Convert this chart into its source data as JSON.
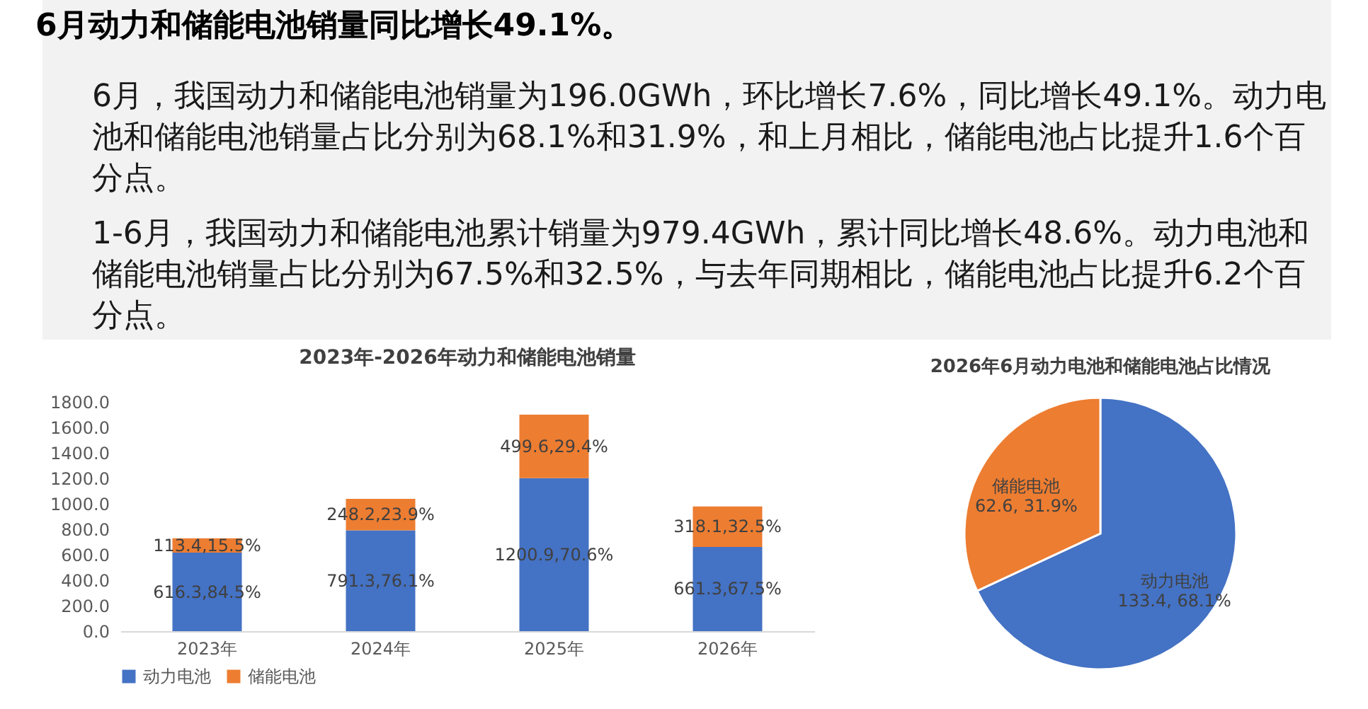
{
  "chart_data": [
    {
      "type": "other",
      "title": "6月动力和储能电池销量同比增长49.1%。",
      "annotations": [
        "6月，我国动力和储能电池销量为196.0GWh，环比增长7.6%，同比增长49.1%。动力电池和储能电池销量占比分别为68.1%和31.9%，和上月相比，储能电池占比提升1.6个百分点。",
        "1-6月，我国动力和储能电池累计销量为979.4GWh，累计同比增长48.6%。动力电池和储能电池销量占比分别为67.5%和32.5%，与去年同期相比，储能电池占比提升6.2个百分点。"
      ]
    },
    {
      "type": "bar",
      "title": "2023年-2026年动力和储能电池销量",
      "categories": [
        "2023年",
        "2024年",
        "2025年",
        "2026年"
      ],
      "stacked": true,
      "series": [
        {
          "name": "动力电池",
          "color": "#4472c4",
          "values": [
            616.3,
            791.3,
            1200.9,
            661.3
          ],
          "value_labels": [
            "616.3,84.5%",
            "791.3,76.1%",
            "1200.9,70.6%",
            "661.3,67.5%"
          ]
        },
        {
          "name": "储能电池",
          "color": "#ed7d31",
          "values": [
            113.4,
            248.2,
            499.6,
            318.1
          ],
          "value_labels": [
            "113.4,15.5%",
            "248.2,23.9%",
            "499.6,29.4%",
            "318.1,32.5%"
          ]
        }
      ],
      "ylim": [
        0,
        1800
      ],
      "yticks": [
        {
          "value": 0,
          "label": "0.0"
        },
        {
          "value": 200,
          "label": "200.0"
        },
        {
          "value": 400,
          "label": "400.0"
        },
        {
          "value": 600,
          "label": "600.0"
        },
        {
          "value": 800,
          "label": "800.0"
        },
        {
          "value": 1000,
          "label": "1000.0"
        },
        {
          "value": 1200,
          "label": "1200.0"
        },
        {
          "value": 1400,
          "label": "1400.0"
        },
        {
          "value": 1600,
          "label": "1600.0"
        },
        {
          "value": 1800,
          "label": "1800.0"
        }
      ],
      "grid": false,
      "legend": "bottom"
    },
    {
      "type": "pie",
      "title": "2026年6月动力电池和储能电池占比情况",
      "categories": [
        "动力电池",
        "储能电池"
      ],
      "values": [
        133.4,
        62.6
      ],
      "colors": [
        "#4472c4",
        "#ed7d31"
      ],
      "value_labels": [
        "133.4, 68.1%",
        "62.6, 31.9%"
      ]
    }
  ]
}
